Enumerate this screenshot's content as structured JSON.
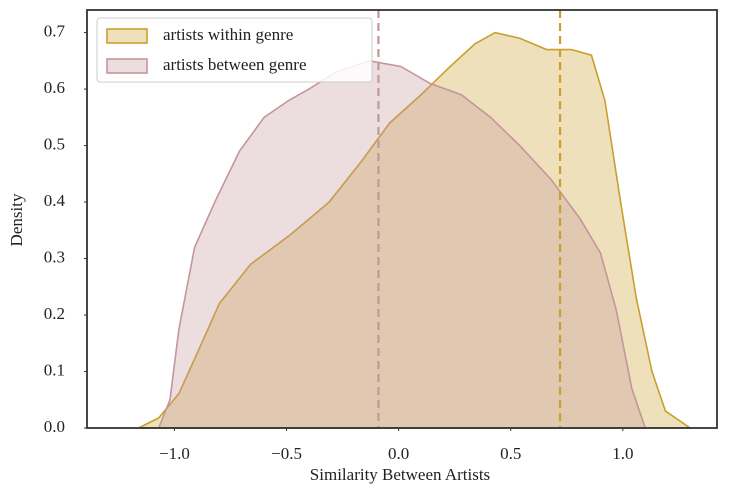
{
  "chart_data": {
    "type": "density",
    "xlabel": "Similarity Between Artists",
    "ylabel": "Density",
    "xlim": [
      -1.39,
      1.42
    ],
    "ylim": [
      0,
      0.74
    ],
    "xticks": [
      {
        "value": -1.0,
        "label": "−1.0"
      },
      {
        "value": -0.5,
        "label": "−0.5"
      },
      {
        "value": 0.0,
        "label": "0.0"
      },
      {
        "value": 0.5,
        "label": "0.5"
      },
      {
        "value": 1.0,
        "label": "1.0"
      }
    ],
    "yticks": [
      {
        "value": 0.0,
        "label": "0.0"
      },
      {
        "value": 0.1,
        "label": "0.1"
      },
      {
        "value": 0.2,
        "label": "0.2"
      },
      {
        "value": 0.3,
        "label": "0.3"
      },
      {
        "value": 0.4,
        "label": "0.4"
      },
      {
        "value": 0.5,
        "label": "0.5"
      },
      {
        "value": 0.6,
        "label": "0.6"
      },
      {
        "value": 0.7,
        "label": "0.7"
      }
    ],
    "legend": "upper left",
    "series": [
      {
        "name": "artists within genre",
        "color": "#c9a02c",
        "x": [
          -1.16,
          -1.07,
          -0.98,
          -0.89,
          -0.8,
          -0.66,
          -0.49,
          -0.31,
          -0.17,
          -0.04,
          0.1,
          0.23,
          0.34,
          0.43,
          0.54,
          0.66,
          0.77,
          0.86,
          0.92,
          0.99,
          1.06,
          1.13,
          1.19,
          1.3
        ],
        "values": [
          0,
          0.018,
          0.061,
          0.14,
          0.22,
          0.29,
          0.34,
          0.4,
          0.47,
          0.54,
          0.59,
          0.64,
          0.68,
          0.7,
          0.69,
          0.67,
          0.67,
          0.66,
          0.58,
          0.4,
          0.23,
          0.1,
          0.03,
          0
        ]
      },
      {
        "name": "artists between genre",
        "color": "#c4969c",
        "x": [
          -1.07,
          -1.02,
          -0.98,
          -0.91,
          -0.82,
          -0.71,
          -0.6,
          -0.49,
          -0.4,
          -0.28,
          -0.13,
          0.01,
          0.14,
          0.28,
          0.41,
          0.54,
          0.68,
          0.81,
          0.9,
          0.97,
          1.04,
          1.1
        ],
        "values": [
          0,
          0.05,
          0.175,
          0.32,
          0.4,
          0.49,
          0.55,
          0.58,
          0.6,
          0.63,
          0.65,
          0.64,
          0.61,
          0.59,
          0.55,
          0.5,
          0.44,
          0.37,
          0.31,
          0.21,
          0.07,
          0
        ]
      }
    ],
    "mean_lines": [
      {
        "x": 0.72,
        "color": "#c9a02c"
      },
      {
        "x": -0.09,
        "color": "#c4969c"
      }
    ]
  }
}
